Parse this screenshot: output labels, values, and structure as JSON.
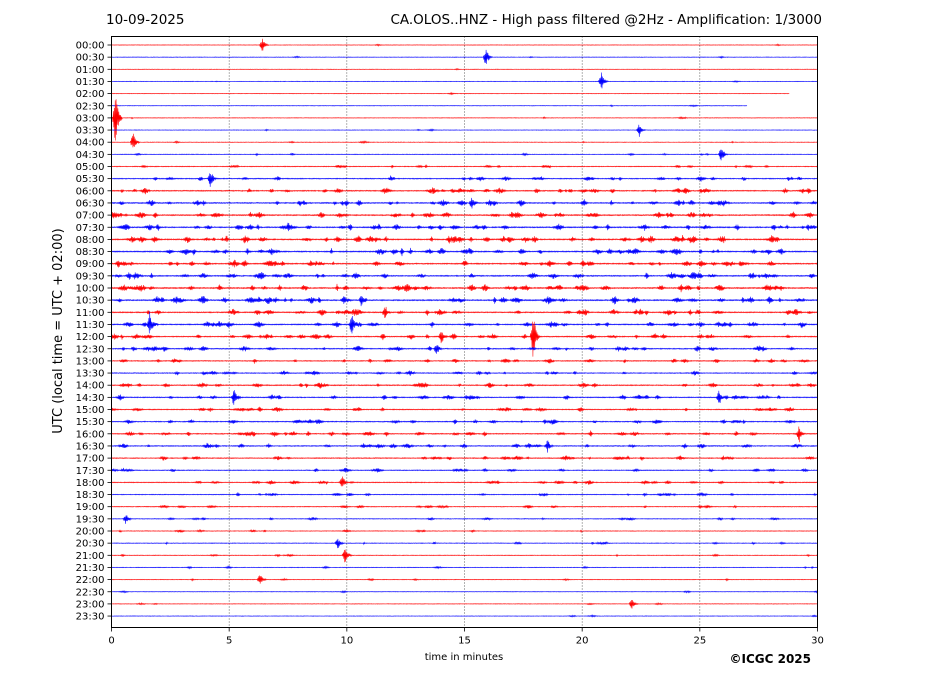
{
  "header": {
    "date": "10-09-2025",
    "title": "CA.OLOS..HNZ - High pass filtered @2Hz - Amplification: 1/3000"
  },
  "copyright": "©ICGC 2025",
  "chart_data": {
    "type": "line",
    "title": "CA.OLOS..HNZ - High pass filtered @2Hz - Amplification: 1/3000",
    "xlabel": "time in minutes",
    "ylabel": "UTC (local time = UTC + 02:00)",
    "xlim": [
      0,
      30
    ],
    "x_ticks": [
      0,
      5,
      10,
      15,
      20,
      25,
      30
    ],
    "vertical_grid": "dotted at every 5 minutes",
    "row_labels": [
      "00:00",
      "00:30",
      "01:00",
      "01:30",
      "02:00",
      "02:30",
      "03:00",
      "03:30",
      "04:00",
      "04:30",
      "05:00",
      "05:30",
      "06:00",
      "06:30",
      "07:00",
      "07:30",
      "08:00",
      "08:30",
      "09:00",
      "09:30",
      "10:00",
      "10:30",
      "11:00",
      "11:30",
      "12:00",
      "12:30",
      "13:00",
      "13:30",
      "14:00",
      "14:30",
      "15:00",
      "15:30",
      "16:00",
      "16:30",
      "17:00",
      "17:30",
      "18:00",
      "18:30",
      "19:00",
      "19:30",
      "20:00",
      "20:30",
      "21:00",
      "21:30",
      "22:00",
      "22:30",
      "23:00",
      "23:30"
    ],
    "trace_colors": [
      "#ff0000",
      "#0000ff"
    ],
    "trace_end_minutes": {
      "02:00": 28.8,
      "02:30": 27.0
    },
    "activity": [
      0.03,
      0.04,
      0.01,
      0.03,
      0.02,
      0.03,
      0.06,
      0.04,
      0.07,
      0.12,
      0.25,
      0.4,
      0.5,
      0.55,
      0.6,
      0.62,
      0.65,
      0.62,
      0.6,
      0.58,
      0.66,
      0.66,
      0.55,
      0.52,
      0.48,
      0.45,
      0.4,
      0.36,
      0.45,
      0.45,
      0.38,
      0.42,
      0.45,
      0.42,
      0.38,
      0.3,
      0.32,
      0.25,
      0.22,
      0.2,
      0.15,
      0.15,
      0.12,
      0.1,
      0.08,
      0.06,
      0.05,
      0.04
    ],
    "events": [
      {
        "row": "00:00",
        "minute": 6.4,
        "amplitude": 0.6
      },
      {
        "row": "00:30",
        "minute": 15.9,
        "amplitude": 0.8
      },
      {
        "row": "01:30",
        "minute": 20.8,
        "amplitude": 0.8
      },
      {
        "row": "03:00",
        "minute": 0.15,
        "amplitude": 2.5
      },
      {
        "row": "03:30",
        "minute": 22.4,
        "amplitude": 0.6
      },
      {
        "row": "04:00",
        "minute": 0.9,
        "amplitude": 0.9
      },
      {
        "row": "04:30",
        "minute": 25.9,
        "amplitude": 0.7
      },
      {
        "row": "05:30",
        "minute": 4.2,
        "amplitude": 0.8
      },
      {
        "row": "06:30",
        "minute": 15.3,
        "amplitude": 0.7
      },
      {
        "row": "07:30",
        "minute": 7.5,
        "amplitude": 0.6
      },
      {
        "row": "10:30",
        "minute": 10.6,
        "amplitude": 0.7
      },
      {
        "row": "11:00",
        "minute": 11.6,
        "amplitude": 0.7
      },
      {
        "row": "11:30",
        "minute": 1.6,
        "amplitude": 1.2
      },
      {
        "row": "11:30",
        "minute": 10.2,
        "amplitude": 1.0
      },
      {
        "row": "12:00",
        "minute": 17.9,
        "amplitude": 2.2
      },
      {
        "row": "12:00",
        "minute": 14.0,
        "amplitude": 0.7
      },
      {
        "row": "12:30",
        "minute": 13.8,
        "amplitude": 0.6
      },
      {
        "row": "14:30",
        "minute": 5.2,
        "amplitude": 0.9
      },
      {
        "row": "14:30",
        "minute": 25.8,
        "amplitude": 0.7
      },
      {
        "row": "16:00",
        "minute": 29.2,
        "amplitude": 0.7
      },
      {
        "row": "16:30",
        "minute": 18.5,
        "amplitude": 0.6
      },
      {
        "row": "18:00",
        "minute": 9.8,
        "amplitude": 0.6
      },
      {
        "row": "19:30",
        "minute": 0.6,
        "amplitude": 0.5
      },
      {
        "row": "20:30",
        "minute": 9.6,
        "amplitude": 0.5
      },
      {
        "row": "21:00",
        "minute": 9.9,
        "amplitude": 0.8
      },
      {
        "row": "22:00",
        "minute": 6.3,
        "amplitude": 0.6
      },
      {
        "row": "23:00",
        "minute": 22.1,
        "amplitude": 0.5
      }
    ]
  }
}
